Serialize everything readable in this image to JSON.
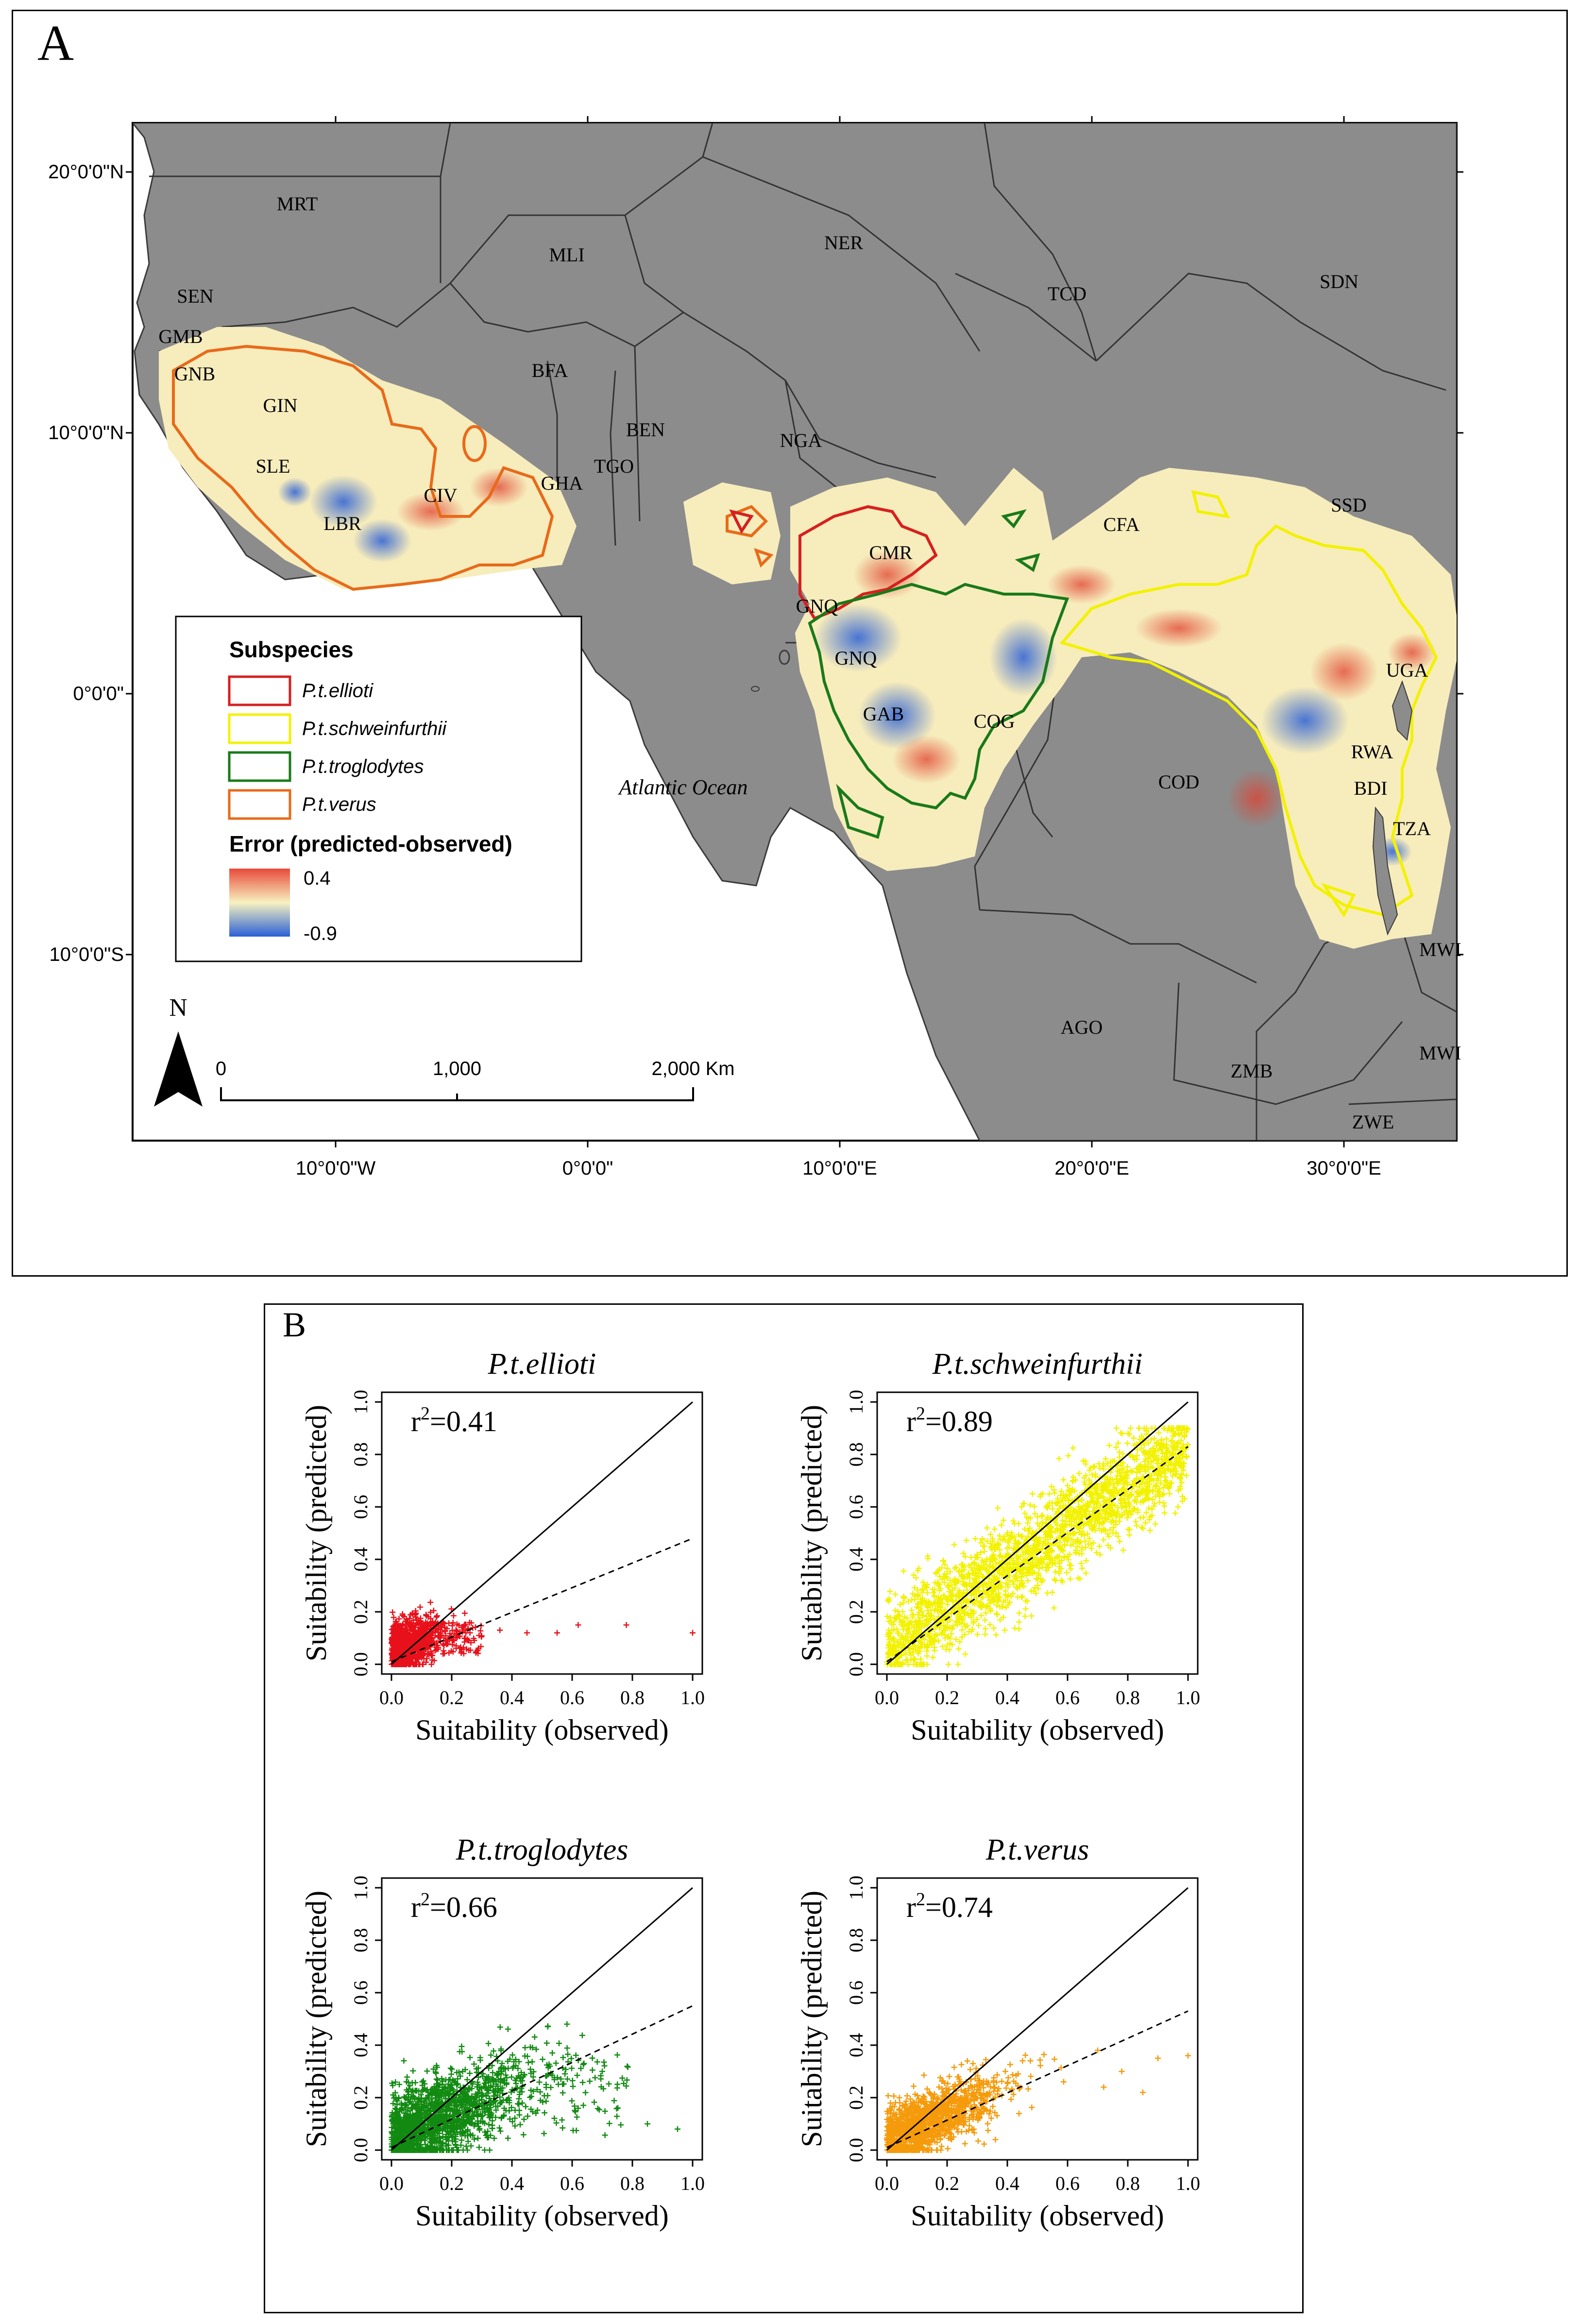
{
  "panelA": {
    "letter": "A",
    "lat_labels": [
      "20°0'0\"N",
      "10°0'0\"N",
      "0°0'0\"",
      "10°0'0\"S"
    ],
    "lon_labels": [
      "10°0'0\"W",
      "0°0'0\"",
      "10°0'0\"E",
      "20°0'0\"E",
      "30°0'0\"E"
    ],
    "countries": [
      "MRT",
      "MLI",
      "NER",
      "TCD",
      "SDN",
      "SEN",
      "GMB",
      "GNB",
      "GIN",
      "BFA",
      "BEN",
      "NGA",
      "SLE",
      "TGO",
      "GHA",
      "CIV",
      "LBR",
      "CMR",
      "CFA",
      "SSD",
      "GNQ",
      "GNQ",
      "GAB",
      "COG",
      "UGA",
      "COD",
      "RWA",
      "BDI",
      "TZA",
      "MWI",
      "AGO",
      "ZMB",
      "MWI",
      "ZWE"
    ],
    "ocean_label": "Atlantic Ocean",
    "legend": {
      "title": "Subspecies",
      "items": [
        {
          "label": "P.t.ellioti",
          "color": "#d62020"
        },
        {
          "label": "P.t.schweinfurthii",
          "color": "#f2f200"
        },
        {
          "label": "P.t.troglodytes",
          "color": "#1a7a1a"
        },
        {
          "label": "P.t.verus",
          "color": "#e86a1a"
        }
      ],
      "error_title": "Error (predicted-observed)",
      "error_max": "0.4",
      "error_min": "-0.9",
      "error_colors": [
        "#e84a3a",
        "#f7f2c0",
        "#2a5fd6"
      ]
    },
    "north": "N",
    "scale": {
      "labels": [
        "0",
        "1,000",
        "2,000 Km"
      ]
    },
    "colors": {
      "land": "#8c8c8c",
      "ocean": "#ffffff",
      "border": "#3a3a3a"
    }
  },
  "panelB": {
    "letter": "B",
    "plots": [
      {
        "title": "P.t.ellioti",
        "r2": "0.41",
        "color": "#e8101a",
        "xlabel": "Suitability (observed)",
        "ylabel": "Suitability (predicted)"
      },
      {
        "title": "P.t.schweinfurthii",
        "r2": "0.89",
        "color": "#f2f200",
        "xlabel": "Suitability (observed)",
        "ylabel": "Suitability (predicted)"
      },
      {
        "title": "P.t.troglodytes",
        "r2": "0.66",
        "color": "#128a12",
        "xlabel": "Suitability (observed)",
        "ylabel": "Suitability (predicted)"
      },
      {
        "title": "P.t.verus",
        "r2": "0.74",
        "color": "#f59a0a",
        "xlabel": "Suitability (observed)",
        "ylabel": "Suitability (predicted)"
      }
    ],
    "r2_prefix": "r",
    "r2_sup": "2",
    "r2_eq": "="
  },
  "chart_data": [
    {
      "type": "scatter",
      "title": "P.t.ellioti",
      "xlabel": "Suitability (observed)",
      "ylabel": "Suitability (predicted)",
      "xlim": [
        0,
        1
      ],
      "ylim": [
        0,
        1
      ],
      "ticks": [
        "0.0",
        "0.2",
        "0.4",
        "0.6",
        "0.8",
        "1.0"
      ],
      "r2": 0.41,
      "one_to_one": [
        [
          0,
          0
        ],
        [
          1,
          1
        ]
      ],
      "fit_line": [
        [
          0,
          0.01
        ],
        [
          1,
          0.48
        ]
      ],
      "cloud": {
        "x_max": 0.3,
        "y_max": 0.35,
        "outliers": [
          [
            0.36,
            0.13
          ],
          [
            0.45,
            0.12
          ],
          [
            0.55,
            0.12
          ],
          [
            0.62,
            0.15
          ],
          [
            0.78,
            0.15
          ],
          [
            1.0,
            0.12
          ]
        ]
      }
    },
    {
      "type": "scatter",
      "title": "P.t.schweinfurthii",
      "xlabel": "Suitability (observed)",
      "ylabel": "Suitability (predicted)",
      "xlim": [
        0,
        1
      ],
      "ylim": [
        0,
        1
      ],
      "ticks": [
        "0.0",
        "0.2",
        "0.4",
        "0.6",
        "0.8",
        "1.0"
      ],
      "r2": 0.89,
      "one_to_one": [
        [
          0,
          0
        ],
        [
          1,
          1
        ]
      ],
      "fit_line": [
        [
          0,
          0.01
        ],
        [
          1,
          0.83
        ]
      ],
      "cloud": {
        "x_max": 1.0,
        "y_max": 0.9,
        "outliers": []
      }
    },
    {
      "type": "scatter",
      "title": "P.t.troglodytes",
      "xlabel": "Suitability (observed)",
      "ylabel": "Suitability (predicted)",
      "xlim": [
        0,
        1
      ],
      "ylim": [
        0,
        1
      ],
      "ticks": [
        "0.0",
        "0.2",
        "0.4",
        "0.6",
        "0.8",
        "1.0"
      ],
      "r2": 0.66,
      "one_to_one": [
        [
          0,
          0
        ],
        [
          1,
          1
        ]
      ],
      "fit_line": [
        [
          0,
          0.01
        ],
        [
          1,
          0.55
        ]
      ],
      "cloud": {
        "x_max": 0.75,
        "y_max": 0.48,
        "outliers": [
          [
            0.85,
            0.1
          ],
          [
            0.95,
            0.08
          ],
          [
            0.7,
            0.3
          ]
        ]
      }
    },
    {
      "type": "scatter",
      "title": "P.t.verus",
      "xlabel": "Suitability (observed)",
      "ylabel": "Suitability (predicted)",
      "xlim": [
        0,
        1
      ],
      "ylim": [
        0,
        1
      ],
      "ticks": [
        "0.0",
        "0.2",
        "0.4",
        "0.6",
        "0.8",
        "1.0"
      ],
      "r2": 0.74,
      "one_to_one": [
        [
          0,
          0
        ],
        [
          1,
          1
        ]
      ],
      "fit_line": [
        [
          0,
          0.01
        ],
        [
          1,
          0.53
        ]
      ],
      "cloud": {
        "x_max": 0.6,
        "y_max": 0.4,
        "outliers": [
          [
            0.7,
            0.38
          ],
          [
            0.72,
            0.24
          ],
          [
            0.78,
            0.3
          ],
          [
            0.85,
            0.22
          ],
          [
            0.9,
            0.35
          ],
          [
            1.0,
            0.36
          ]
        ]
      }
    }
  ]
}
